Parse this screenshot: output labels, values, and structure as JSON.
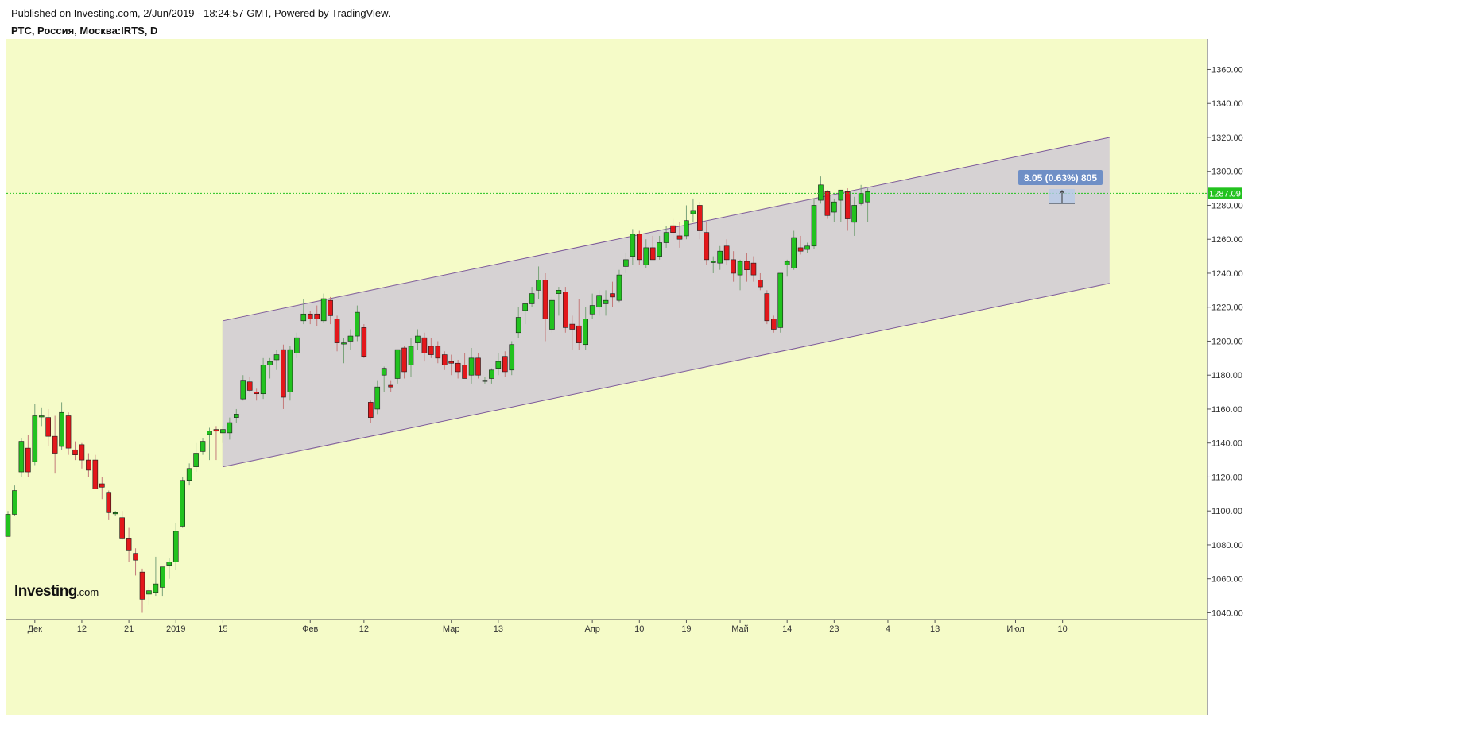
{
  "header": {
    "published": "Published on Investing.com, 2/Jun/2019 - 18:24:57 GMT, Powered by TradingView.",
    "symbol": "РТС, Россия, Москва:IRTS, D"
  },
  "logo": {
    "brand": "Investing",
    "suffix": ".com"
  },
  "colors": {
    "background": "#f5fbc8",
    "up": "#22c21f",
    "down": "#e3171b",
    "channel_fill": "#d6d2d3",
    "channel_line": "#7d5a9a",
    "price_line": "#22c21f",
    "label": "#6f8fc6"
  },
  "chart_data": {
    "type": "candlestick",
    "ylim": [
      1036,
      1378
    ],
    "y_ticks": [
      1040,
      1060,
      1080,
      1100,
      1120,
      1140,
      1160,
      1180,
      1200,
      1220,
      1240,
      1260,
      1280,
      1300,
      1320,
      1340,
      1360
    ],
    "y_tick_labels": [
      "1040.00",
      "1060.00",
      "1080.00",
      "1100.00",
      "1120.00",
      "1140.00",
      "1160.00",
      "1180.00",
      "1200.00",
      "1220.00",
      "1240.00",
      "1260.00",
      "1280.00",
      "1300.00",
      "1320.00",
      "1340.00",
      "1360.00"
    ],
    "x_ticks": [
      {
        "label": "Дек",
        "index": 4
      },
      {
        "label": "12",
        "index": 11
      },
      {
        "label": "21",
        "index": 18
      },
      {
        "label": "2019",
        "index": 25
      },
      {
        "label": "15",
        "index": 32
      },
      {
        "label": "Фев",
        "index": 45
      },
      {
        "label": "12",
        "index": 53
      },
      {
        "label": "Мар",
        "index": 66
      },
      {
        "label": "13",
        "index": 73
      },
      {
        "label": "Апр",
        "index": 87
      },
      {
        "label": "10",
        "index": 94
      },
      {
        "label": "19",
        "index": 101
      },
      {
        "label": "Май",
        "index": 109
      },
      {
        "label": "14",
        "index": 116
      },
      {
        "label": "23",
        "index": 123
      },
      {
        "label": "4",
        "index": 131
      },
      {
        "label": "13",
        "index": 138
      },
      {
        "label": "Июл",
        "index": 150
      },
      {
        "label": "10",
        "index": 157
      }
    ],
    "candles": [
      [
        1085,
        1100,
        1085,
        1098
      ],
      [
        1098,
        1115,
        1097,
        1112
      ],
      [
        1123,
        1143,
        1120,
        1141
      ],
      [
        1137,
        1145,
        1120,
        1123
      ],
      [
        1129,
        1163,
        1127,
        1156
      ],
      [
        1156,
        1161,
        1150,
        1156
      ],
      [
        1155,
        1160,
        1138,
        1144
      ],
      [
        1144,
        1156,
        1122,
        1134
      ],
      [
        1138,
        1164,
        1136,
        1158
      ],
      [
        1156,
        1158,
        1133,
        1137
      ],
      [
        1136,
        1141,
        1130,
        1133
      ],
      [
        1139,
        1140,
        1125,
        1130
      ],
      [
        1130,
        1134,
        1120,
        1124
      ],
      [
        1130,
        1133,
        1113,
        1113
      ],
      [
        1116,
        1120,
        1107,
        1114
      ],
      [
        1111,
        1112,
        1095,
        1099
      ],
      [
        1099,
        1100,
        1097,
        1099
      ],
      [
        1096,
        1100,
        1083,
        1084
      ],
      [
        1084,
        1090,
        1070,
        1077
      ],
      [
        1075,
        1078,
        1062,
        1071
      ],
      [
        1064,
        1066,
        1040,
        1048
      ],
      [
        1051,
        1055,
        1045,
        1053
      ],
      [
        1052,
        1073,
        1050,
        1057
      ],
      [
        1055,
        1066,
        1050,
        1067
      ],
      [
        1068,
        1072,
        1060,
        1070
      ],
      [
        1070,
        1093,
        1065,
        1088
      ],
      [
        1091,
        1120,
        1090,
        1118
      ],
      [
        1118,
        1128,
        1115,
        1125
      ],
      [
        1126,
        1140,
        1123,
        1134
      ],
      [
        1135,
        1143,
        1133,
        1141
      ],
      [
        1145,
        1149,
        1130,
        1147
      ],
      [
        1148,
        1150,
        1130,
        1147
      ],
      [
        1146,
        1150,
        1140,
        1148
      ],
      [
        1146,
        1155,
        1142,
        1152
      ],
      [
        1155,
        1160,
        1152,
        1157
      ],
      [
        1166,
        1180,
        1165,
        1177
      ],
      [
        1176,
        1179,
        1170,
        1171
      ],
      [
        1170,
        1172,
        1165,
        1169
      ],
      [
        1169,
        1190,
        1166,
        1186
      ],
      [
        1186,
        1190,
        1178,
        1188
      ],
      [
        1189,
        1195,
        1183,
        1192
      ],
      [
        1195,
        1198,
        1160,
        1167
      ],
      [
        1170,
        1197,
        1165,
        1195
      ],
      [
        1193,
        1205,
        1190,
        1202
      ],
      [
        1212,
        1225,
        1210,
        1216
      ],
      [
        1216,
        1218,
        1210,
        1213
      ],
      [
        1216,
        1221,
        1209,
        1213
      ],
      [
        1212,
        1228,
        1211,
        1225
      ],
      [
        1224,
        1226,
        1210,
        1215
      ],
      [
        1213,
        1215,
        1194,
        1199
      ],
      [
        1199,
        1202,
        1187,
        1199
      ],
      [
        1200,
        1207,
        1195,
        1203
      ],
      [
        1203,
        1221,
        1200,
        1217
      ],
      [
        1208,
        1210,
        1190,
        1191
      ],
      [
        1164,
        1165,
        1152,
        1155
      ],
      [
        1160,
        1177,
        1157,
        1173
      ],
      [
        1180,
        1185,
        1170,
        1184
      ],
      [
        1174,
        1177,
        1170,
        1173
      ],
      [
        1178,
        1195,
        1175,
        1195
      ],
      [
        1196,
        1197,
        1178,
        1182
      ],
      [
        1186,
        1202,
        1179,
        1197
      ],
      [
        1199,
        1207,
        1195,
        1203
      ],
      [
        1202,
        1205,
        1188,
        1193
      ],
      [
        1197,
        1202,
        1190,
        1192
      ],
      [
        1197,
        1200,
        1187,
        1190
      ],
      [
        1192,
        1194,
        1183,
        1186
      ],
      [
        1188,
        1192,
        1180,
        1187
      ],
      [
        1187,
        1189,
        1178,
        1182
      ],
      [
        1186,
        1193,
        1180,
        1178
      ],
      [
        1180,
        1196,
        1175,
        1190
      ],
      [
        1190,
        1193,
        1178,
        1180
      ],
      [
        1177,
        1179,
        1175,
        1177
      ],
      [
        1178,
        1184,
        1175,
        1183
      ],
      [
        1184,
        1193,
        1180,
        1188
      ],
      [
        1191,
        1194,
        1179,
        1182
      ],
      [
        1183,
        1200,
        1180,
        1198
      ],
      [
        1205,
        1220,
        1202,
        1214
      ],
      [
        1218,
        1222,
        1210,
        1222
      ],
      [
        1222,
        1232,
        1220,
        1228
      ],
      [
        1230,
        1244,
        1225,
        1236
      ],
      [
        1236,
        1240,
        1200,
        1213
      ],
      [
        1207,
        1226,
        1205,
        1224
      ],
      [
        1228,
        1232,
        1215,
        1230
      ],
      [
        1229,
        1232,
        1205,
        1208
      ],
      [
        1210,
        1215,
        1195,
        1207
      ],
      [
        1209,
        1225,
        1195,
        1199
      ],
      [
        1198,
        1220,
        1195,
        1213
      ],
      [
        1216,
        1228,
        1213,
        1221
      ],
      [
        1220,
        1230,
        1215,
        1227
      ],
      [
        1222,
        1230,
        1215,
        1224
      ],
      [
        1228,
        1235,
        1220,
        1226
      ],
      [
        1224,
        1242,
        1223,
        1239
      ],
      [
        1244,
        1252,
        1240,
        1248
      ],
      [
        1250,
        1266,
        1245,
        1263
      ],
      [
        1263,
        1265,
        1245,
        1248
      ],
      [
        1245,
        1260,
        1243,
        1255
      ],
      [
        1255,
        1262,
        1250,
        1248
      ],
      [
        1250,
        1262,
        1248,
        1258
      ],
      [
        1258,
        1268,
        1255,
        1264
      ],
      [
        1268,
        1272,
        1260,
        1264
      ],
      [
        1262,
        1270,
        1255,
        1260
      ],
      [
        1262,
        1280,
        1260,
        1271
      ],
      [
        1275,
        1284,
        1270,
        1277
      ],
      [
        1280,
        1282,
        1260,
        1265
      ],
      [
        1264,
        1270,
        1245,
        1248
      ],
      [
        1247,
        1250,
        1240,
        1247
      ],
      [
        1246,
        1256,
        1242,
        1253
      ],
      [
        1256,
        1260,
        1245,
        1248
      ],
      [
        1248,
        1253,
        1235,
        1240
      ],
      [
        1239,
        1248,
        1230,
        1247
      ],
      [
        1247,
        1252,
        1235,
        1242
      ],
      [
        1246,
        1250,
        1235,
        1239
      ],
      [
        1236,
        1240,
        1230,
        1232
      ],
      [
        1228,
        1230,
        1210,
        1212
      ],
      [
        1213,
        1215,
        1205,
        1207
      ],
      [
        1208,
        1240,
        1205,
        1240
      ],
      [
        1245,
        1248,
        1238,
        1247
      ],
      [
        1243,
        1265,
        1242,
        1261
      ],
      [
        1255,
        1262,
        1251,
        1253
      ],
      [
        1254,
        1258,
        1252,
        1256
      ],
      [
        1256,
        1284,
        1254,
        1280
      ],
      [
        1283,
        1297,
        1281,
        1292
      ],
      [
        1288,
        1289,
        1272,
        1274
      ],
      [
        1276,
        1284,
        1270,
        1282
      ],
      [
        1283,
        1288,
        1270,
        1289
      ],
      [
        1288,
        1290,
        1265,
        1272
      ],
      [
        1270,
        1285,
        1262,
        1280
      ],
      [
        1281,
        1292,
        1280,
        1287
      ],
      [
        1282,
        1290,
        1270,
        1288
      ]
    ],
    "channel": {
      "upper_start": [
        32,
        1212
      ],
      "upper_end": [
        164,
        1320
      ],
      "lower_start": [
        32,
        1126
      ],
      "lower_end": [
        164,
        1234
      ]
    },
    "current_price": 1287.09,
    "current_price_label": "1287.09",
    "measure_label": "8.05 (0.63%) 805"
  }
}
